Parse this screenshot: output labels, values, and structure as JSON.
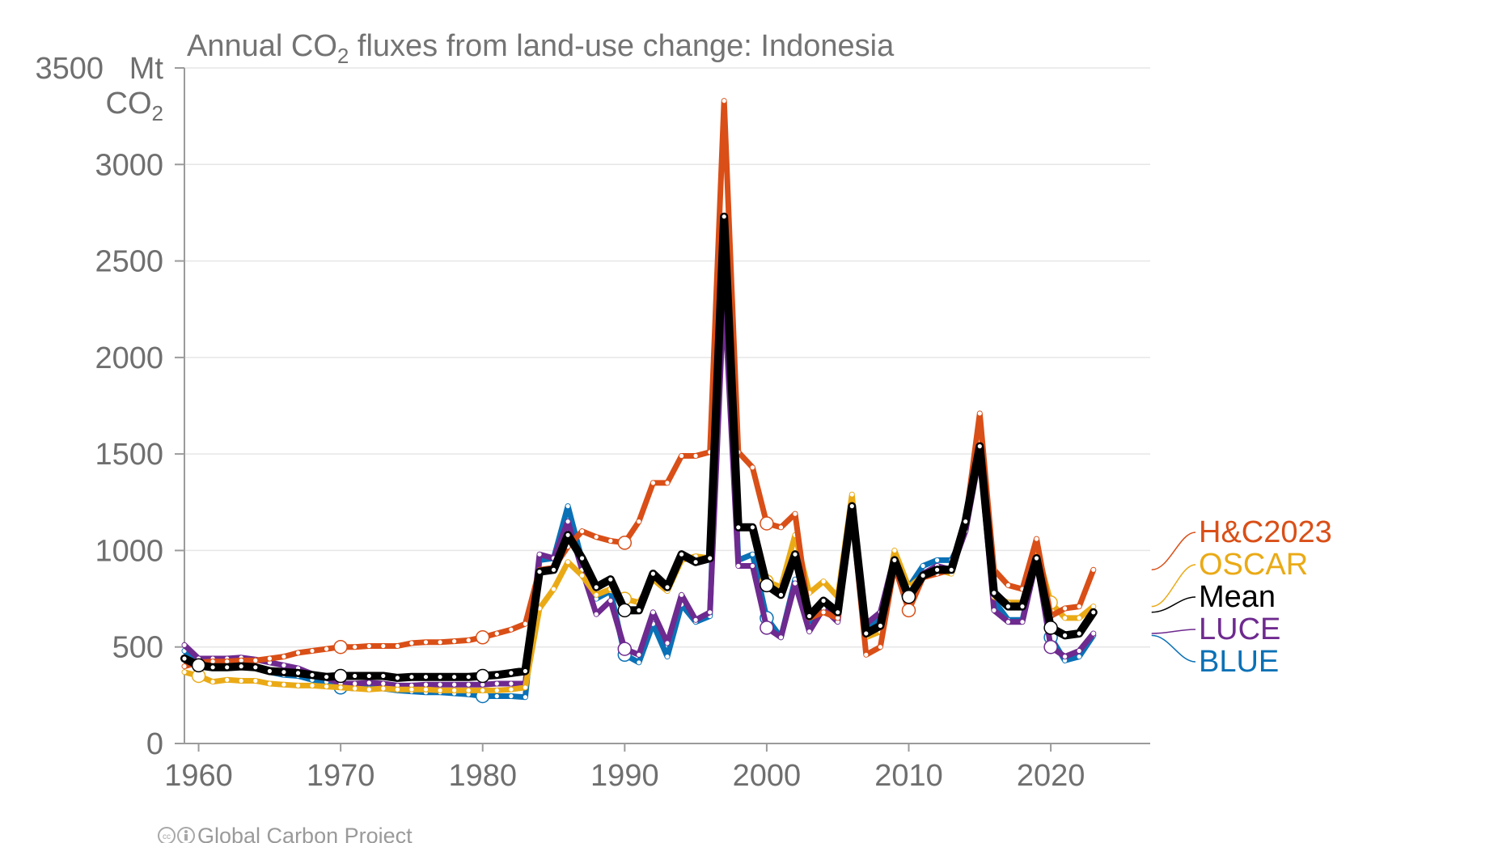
{
  "chart_data": {
    "type": "line",
    "title": {
      "prefix": "Annual CO",
      "subscript": "2",
      "suffix": " fluxes from land-use change: Indonesia"
    },
    "unit": {
      "line1": "Mt",
      "line2_main": "CO",
      "line2_sub": "2"
    },
    "footer": "Global Carbon Project",
    "xlim": [
      1959,
      2027
    ],
    "ylim": [
      0,
      3500
    ],
    "x_ticks": [
      1960,
      1970,
      1980,
      1990,
      2000,
      2010,
      2020
    ],
    "y_ticks": [
      0,
      500,
      1000,
      1500,
      2000,
      2500,
      3000,
      3500
    ],
    "grid": true,
    "legend_position": "right",
    "x": [
      1959,
      1960,
      1961,
      1962,
      1963,
      1964,
      1965,
      1966,
      1967,
      1968,
      1969,
      1970,
      1971,
      1972,
      1973,
      1974,
      1975,
      1976,
      1977,
      1978,
      1979,
      1980,
      1981,
      1982,
      1983,
      1984,
      1985,
      1986,
      1987,
      1988,
      1989,
      1990,
      1991,
      1992,
      1993,
      1994,
      1995,
      1996,
      1997,
      1998,
      1999,
      2000,
      2001,
      2002,
      2003,
      2004,
      2005,
      2006,
      2007,
      2008,
      2009,
      2010,
      2011,
      2012,
      2013,
      2014,
      2015,
      2016,
      2017,
      2018,
      2019,
      2020,
      2021,
      2022,
      2023
    ],
    "series": [
      {
        "name": "BLUE",
        "color": "#0a71b6",
        "width": 7,
        "values": [
          480,
          420,
          420,
          415,
          420,
          400,
          370,
          355,
          350,
          330,
          320,
          290,
          285,
          285,
          285,
          275,
          270,
          265,
          265,
          260,
          255,
          245,
          245,
          245,
          240,
          950,
          960,
          1230,
          950,
          750,
          790,
          460,
          420,
          620,
          450,
          720,
          630,
          660,
          2700,
          950,
          980,
          650,
          550,
          850,
          610,
          690,
          640,
          1260,
          590,
          650,
          980,
          810,
          920,
          950,
          950,
          1100,
          1550,
          740,
          640,
          640,
          970,
          550,
          430,
          450,
          560
        ],
        "hollow": [
          1970,
          1980,
          1990,
          2000,
          2020
        ],
        "zorder": 1
      },
      {
        "name": "LUCE",
        "color": "#6e2a8f",
        "width": 7,
        "values": [
          510,
          440,
          440,
          440,
          445,
          435,
          420,
          405,
          390,
          360,
          340,
          310,
          310,
          315,
          310,
          300,
          300,
          305,
          305,
          305,
          305,
          305,
          310,
          310,
          310,
          980,
          960,
          1150,
          900,
          670,
          740,
          490,
          460,
          680,
          520,
          770,
          640,
          680,
          2350,
          920,
          920,
          600,
          550,
          830,
          580,
          700,
          630,
          1240,
          620,
          680,
          970,
          770,
          880,
          920,
          900,
          1100,
          1500,
          690,
          630,
          630,
          950,
          500,
          450,
          480,
          570
        ],
        "hollow": [
          1990,
          2000,
          2020
        ],
        "zorder": 2
      },
      {
        "name": "OSCAR",
        "color": "#eaaa16",
        "width": 7,
        "values": [
          370,
          350,
          320,
          330,
          325,
          325,
          310,
          305,
          300,
          300,
          295,
          290,
          285,
          280,
          285,
          280,
          280,
          280,
          275,
          275,
          275,
          275,
          275,
          280,
          290,
          700,
          800,
          940,
          870,
          770,
          800,
          750,
          730,
          850,
          790,
          950,
          970,
          960,
          2600,
          1120,
          1120,
          840,
          810,
          1080,
          780,
          840,
          760,
          1290,
          550,
          580,
          1000,
          810,
          870,
          900,
          880,
          1150,
          1570,
          760,
          730,
          730,
          1010,
          730,
          650,
          650,
          710
        ],
        "hollow": [
          1960,
          1990,
          2000,
          2020
        ],
        "zorder": 3
      },
      {
        "name": "H&C2023",
        "color": "#d94f17",
        "width": 7,
        "values": [
          400,
          420,
          425,
          425,
          430,
          430,
          440,
          450,
          470,
          480,
          490,
          500,
          500,
          505,
          505,
          505,
          520,
          525,
          525,
          530,
          535,
          550,
          570,
          590,
          620,
          900,
          910,
          1020,
          1100,
          1070,
          1050,
          1040,
          1150,
          1350,
          1350,
          1490,
          1490,
          1510,
          3330,
          1510,
          1430,
          1140,
          1120,
          1190,
          650,
          680,
          650,
          1200,
          460,
          500,
          920,
          690,
          860,
          880,
          900,
          1150,
          1710,
          900,
          820,
          800,
          1060,
          660,
          700,
          710,
          900
        ],
        "hollow": [
          1970,
          1980,
          1990,
          2000,
          2010
        ],
        "zorder": 4
      },
      {
        "name": "Mean",
        "color": "#000000",
        "width": 10,
        "values": [
          440,
          405,
          395,
          395,
          400,
          395,
          375,
          370,
          365,
          355,
          345,
          350,
          350,
          350,
          350,
          340,
          345,
          345,
          345,
          345,
          345,
          350,
          355,
          365,
          375,
          890,
          900,
          1080,
          960,
          810,
          850,
          690,
          690,
          880,
          810,
          980,
          940,
          960,
          2730,
          1120,
          1120,
          820,
          770,
          980,
          660,
          740,
          680,
          1230,
          570,
          610,
          950,
          760,
          870,
          900,
          900,
          1150,
          1540,
          780,
          710,
          710,
          960,
          600,
          560,
          570,
          680
        ],
        "hollow": [
          1960,
          1970,
          1980,
          1990,
          2000,
          2010,
          2020
        ],
        "zorder": 5
      }
    ],
    "legend": [
      {
        "label": "H&C2023",
        "color": "#d94f17"
      },
      {
        "label": "OSCAR",
        "color": "#eaaa16"
      },
      {
        "label": "Mean",
        "color": "#000000"
      },
      {
        "label": "LUCE",
        "color": "#6e2a8f"
      },
      {
        "label": "BLUE",
        "color": "#0a71b6"
      }
    ]
  }
}
